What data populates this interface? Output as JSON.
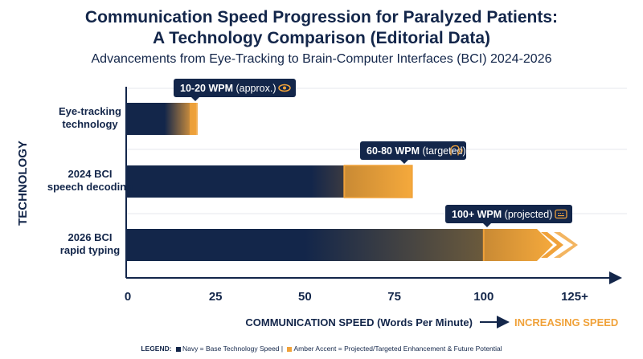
{
  "title_line1": "Communication Speed Progression for Paralyzed Patients:",
  "title_line2": "A Technology Comparison (Editorial Data)",
  "subtitle": "Advancements from Eye-Tracking to Brain-Computer Interfaces (BCI) 2024-2026",
  "colors": {
    "navy": "#13264a",
    "amber": "#f0a23a",
    "grid": "#e4e7ee"
  },
  "chart_data": {
    "type": "bar",
    "orientation": "horizontal",
    "categories": [
      {
        "line1": "Eye-tracking",
        "line2": "technology"
      },
      {
        "line1": "2024 BCI",
        "line2": "speech decoding"
      },
      {
        "line1": "2026 BCI",
        "line2": "rapid typing"
      }
    ],
    "base_values": [
      16,
      61,
      100
    ],
    "enhanced_values": [
      20,
      80,
      125
    ],
    "callouts": [
      {
        "value": "10-20 WPM",
        "note": "(approx.)",
        "icon": "eye-icon"
      },
      {
        "value": "60-80 WPM",
        "note": "(targeted)",
        "icon": "speech-head-icon"
      },
      {
        "value": "100+ WPM",
        "note": "(projected)",
        "icon": "keyboard-icon"
      }
    ],
    "xticks": [
      "0",
      "25",
      "50",
      "75",
      "100",
      "125+"
    ],
    "xtick_values": [
      0,
      25,
      50,
      75,
      100,
      125
    ],
    "xlim": [
      0,
      137
    ],
    "xlabel": "COMMUNICATION SPEED (Words Per Minute)",
    "xlabel_accent": "INCREASING SPEED",
    "ylabel": "TECHNOLOGY",
    "grid": true
  },
  "legend": {
    "prefix": "LEGEND:",
    "navy_text": "Navy = Base Technology Speed |",
    "amber_text": "Amber Accent = Projected/Targeted Enhancement & Future Potential"
  }
}
